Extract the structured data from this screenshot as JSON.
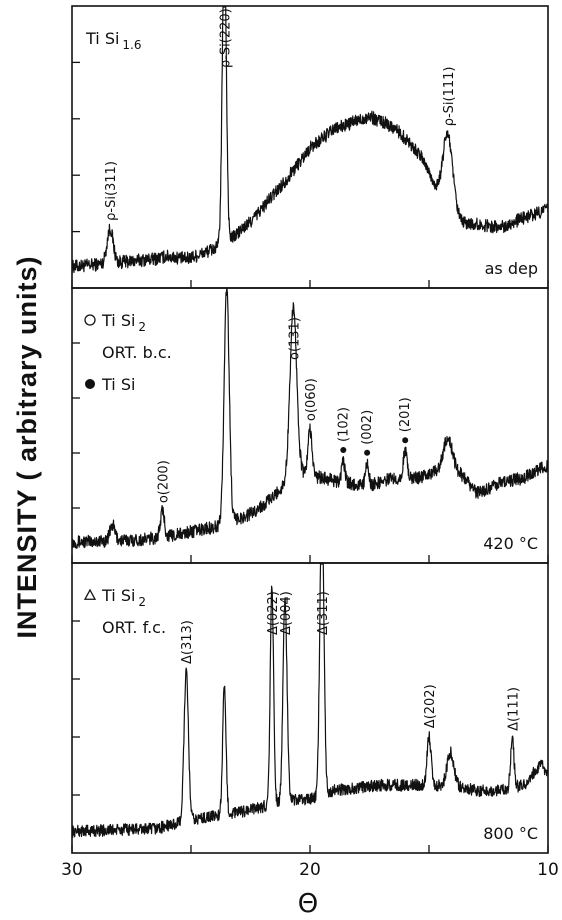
{
  "y_axis_label": "INTENSITY ( arbitrary  units)",
  "x_axis_label": "Θ",
  "chart_data": [
    {
      "type": "line",
      "panel": "top",
      "condition": "as dep",
      "legend": [
        {
          "text": "Ti Si",
          "sub": "1.6"
        }
      ],
      "xlim": [
        30,
        10
      ],
      "x_ticks": [
        30,
        25,
        20,
        15,
        10
      ],
      "x_tick_labels": [],
      "baseline": 0.06,
      "series": [
        {
          "x": [
            30,
            26.5,
            26.0,
            25.2,
            24.5,
            23.5,
            22.5,
            21.0,
            20.0,
            19.0,
            17.5,
            16.5,
            15.8,
            15.2,
            14.5,
            14.0,
            12.0,
            10.0
          ],
          "y": [
            0.05,
            0.08,
            0.09,
            0.08,
            0.1,
            0.14,
            0.22,
            0.38,
            0.5,
            0.57,
            0.62,
            0.58,
            0.52,
            0.45,
            0.3,
            0.22,
            0.2,
            0.27
          ]
        }
      ],
      "peaks": [
        {
          "x": 28.4,
          "height": 0.13,
          "width": 0.18,
          "label": "ρ-Si(311)",
          "marker": "none"
        },
        {
          "x": 23.6,
          "height": 1.15,
          "width": 0.12,
          "label": "ρ-Si(220)",
          "marker": "none"
        },
        {
          "x": 14.2,
          "height": 0.3,
          "width": 0.3,
          "label": "ρ-Si(111)",
          "marker": "none"
        }
      ],
      "noise": 0.025
    },
    {
      "type": "line",
      "panel": "middle",
      "condition": "420 °C",
      "legend": [
        {
          "symbol": "circle-open",
          "text": "Ti Si",
          "sub": "2"
        },
        {
          "symbol": "none",
          "text": "ORT. b.c."
        },
        {
          "symbol": "circle-filled",
          "text": "Ti Si"
        }
      ],
      "xlim": [
        30,
        10
      ],
      "x_ticks": [
        30,
        25,
        20,
        15,
        10
      ],
      "x_tick_labels": [],
      "baseline": 0.04,
      "series": [
        {
          "x": [
            30,
            27.0,
            25.5,
            24.5,
            23.5,
            22.5,
            21.6,
            21.0,
            20.5,
            19.5,
            18.5,
            17.5,
            16.5,
            15.5,
            14.8,
            14.2,
            13.5,
            13.0,
            12.0,
            11.0,
            10.0
          ],
          "y": [
            0.05,
            0.06,
            0.08,
            0.1,
            0.12,
            0.16,
            0.22,
            0.28,
            0.32,
            0.3,
            0.28,
            0.27,
            0.3,
            0.3,
            0.32,
            0.36,
            0.3,
            0.24,
            0.28,
            0.3,
            0.35
          ]
        }
      ],
      "peaks": [
        {
          "x": 28.3,
          "height": 0.06,
          "width": 0.15,
          "label": "",
          "marker": "none"
        },
        {
          "x": 26.2,
          "height": 0.1,
          "width": 0.12,
          "label": "o(200)",
          "marker": "none"
        },
        {
          "x": 23.5,
          "height": 0.92,
          "width": 0.15,
          "label": "",
          "marker": "none"
        },
        {
          "x": 20.7,
          "height": 0.66,
          "width": 0.2,
          "label": "o(131)",
          "marker": "none"
        },
        {
          "x": 20.0,
          "height": 0.18,
          "width": 0.12,
          "label": "o(060)",
          "marker": "none"
        },
        {
          "x": 18.6,
          "height": 0.08,
          "width": 0.1,
          "label": "(102)",
          "marker": "circle-filled"
        },
        {
          "x": 17.6,
          "height": 0.08,
          "width": 0.1,
          "label": "(002)",
          "marker": "circle-filled"
        },
        {
          "x": 16.0,
          "height": 0.1,
          "width": 0.12,
          "label": "(201)",
          "marker": "circle-filled"
        },
        {
          "x": 14.2,
          "height": 0.1,
          "width": 0.25,
          "label": "",
          "marker": "none"
        }
      ],
      "noise": 0.025
    },
    {
      "type": "line",
      "panel": "bottom",
      "condition": "800 °C",
      "legend": [
        {
          "symbol": "triangle-open",
          "text": "Ti Si",
          "sub": "2"
        },
        {
          "symbol": "none",
          "text": "ORT. f.c."
        }
      ],
      "xlim": [
        30,
        10
      ],
      "x_ticks": [
        30,
        25,
        20,
        15,
        10
      ],
      "x_tick_labels": [
        "30",
        "",
        "20",
        "",
        "10"
      ],
      "baseline": 0.06,
      "series": [
        {
          "x": [
            30,
            26.5,
            25.5,
            24.5,
            23.0,
            22.0,
            21.0,
            20.0,
            19.5,
            19.0,
            18.0,
            17.0,
            16.0,
            15.0,
            14.0,
            13.0,
            12.0,
            11.0,
            10.3,
            10.0
          ],
          "y": [
            0.05,
            0.06,
            0.08,
            0.1,
            0.12,
            0.14,
            0.16,
            0.17,
            0.18,
            0.2,
            0.21,
            0.22,
            0.22,
            0.22,
            0.22,
            0.2,
            0.2,
            0.22,
            0.3,
            0.25
          ]
        }
      ],
      "peaks": [
        {
          "x": 25.2,
          "height": 0.55,
          "width": 0.13,
          "label": "Δ(313)",
          "marker": "none"
        },
        {
          "x": 23.6,
          "height": 0.46,
          "width": 0.1,
          "label": "",
          "marker": "none"
        },
        {
          "x": 21.6,
          "height": 0.8,
          "width": 0.1,
          "label": "Δ(022)",
          "marker": "none"
        },
        {
          "x": 21.05,
          "height": 0.74,
          "width": 0.12,
          "label": "Δ(004)",
          "marker": "none"
        },
        {
          "x": 19.5,
          "height": 1.1,
          "width": 0.12,
          "label": "Δ(311)",
          "marker": "none"
        },
        {
          "x": 15.0,
          "height": 0.18,
          "width": 0.12,
          "label": "Δ(202)",
          "marker": "none"
        },
        {
          "x": 14.1,
          "height": 0.12,
          "width": 0.2,
          "label": "",
          "marker": "none"
        },
        {
          "x": 11.5,
          "height": 0.18,
          "width": 0.1,
          "label": "Δ(111)",
          "marker": "none"
        }
      ],
      "noise": 0.022
    }
  ]
}
